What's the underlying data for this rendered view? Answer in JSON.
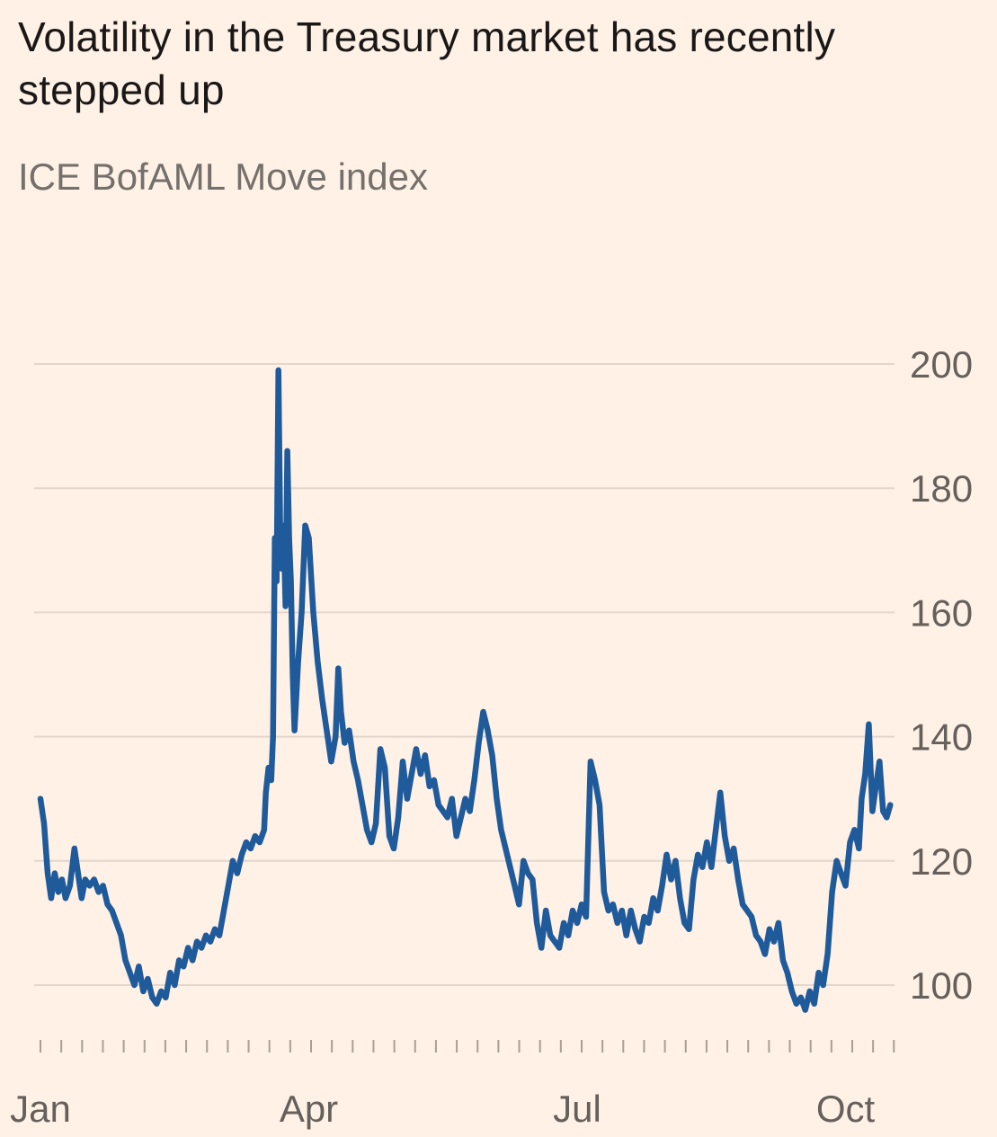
{
  "header": {
    "title": "Volatility in the Treasury market has recently stepped up",
    "subtitle": "ICE BofAML Move index"
  },
  "chart_data": {
    "type": "line",
    "title": "Volatility in the Treasury market has recently stepped up",
    "subtitle": "ICE BofAML Move index",
    "series_name": "ICE BofAML Move index",
    "x_unit": "months (Jan=0, Apr=3, Jul=6, Oct=9)",
    "xlim": [
      0,
      9.55
    ],
    "ylim": [
      90,
      207
    ],
    "grid": "horizontal",
    "legend": "none",
    "yticks": [
      100,
      120,
      140,
      160,
      180,
      200
    ],
    "xticks": [
      {
        "x": 0,
        "label": "Jan"
      },
      {
        "x": 3,
        "label": "Apr"
      },
      {
        "x": 6,
        "label": "Jul"
      },
      {
        "x": 9,
        "label": "Oct"
      }
    ],
    "minor_tick_step": 0.2327,
    "colors": {
      "line": "#1f5a9b",
      "background": "#fff1e5",
      "grid": "#e3d6ca",
      "tick": "#a99f94",
      "axis_text": "#66605c",
      "title_text": "#1a1817",
      "subtitle_text": "#74706b"
    },
    "points": [
      [
        0.0,
        130
      ],
      [
        0.04,
        126
      ],
      [
        0.08,
        118
      ],
      [
        0.12,
        114
      ],
      [
        0.16,
        118
      ],
      [
        0.2,
        115
      ],
      [
        0.24,
        117
      ],
      [
        0.28,
        114
      ],
      [
        0.33,
        116
      ],
      [
        0.38,
        122
      ],
      [
        0.42,
        118
      ],
      [
        0.46,
        114
      ],
      [
        0.5,
        117
      ],
      [
        0.55,
        116
      ],
      [
        0.6,
        117
      ],
      [
        0.65,
        115
      ],
      [
        0.7,
        116
      ],
      [
        0.75,
        113
      ],
      [
        0.8,
        112
      ],
      [
        0.85,
        110
      ],
      [
        0.9,
        108
      ],
      [
        0.95,
        104
      ],
      [
        1.0,
        102
      ],
      [
        1.05,
        100
      ],
      [
        1.1,
        103
      ],
      [
        1.15,
        99
      ],
      [
        1.2,
        101
      ],
      [
        1.25,
        98
      ],
      [
        1.3,
        97
      ],
      [
        1.35,
        99
      ],
      [
        1.4,
        98
      ],
      [
        1.45,
        102
      ],
      [
        1.5,
        100
      ],
      [
        1.55,
        104
      ],
      [
        1.6,
        103
      ],
      [
        1.65,
        106
      ],
      [
        1.7,
        104
      ],
      [
        1.75,
        107
      ],
      [
        1.8,
        106
      ],
      [
        1.85,
        108
      ],
      [
        1.9,
        107
      ],
      [
        1.95,
        109
      ],
      [
        2.0,
        108
      ],
      [
        2.05,
        112
      ],
      [
        2.1,
        116
      ],
      [
        2.15,
        120
      ],
      [
        2.2,
        118
      ],
      [
        2.25,
        121
      ],
      [
        2.3,
        123
      ],
      [
        2.35,
        122
      ],
      [
        2.4,
        124
      ],
      [
        2.45,
        123
      ],
      [
        2.5,
        125
      ],
      [
        2.52,
        131
      ],
      [
        2.55,
        135
      ],
      [
        2.58,
        133
      ],
      [
        2.6,
        140
      ],
      [
        2.62,
        172
      ],
      [
        2.64,
        165
      ],
      [
        2.66,
        199
      ],
      [
        2.68,
        173
      ],
      [
        2.7,
        167
      ],
      [
        2.72,
        174
      ],
      [
        2.74,
        161
      ],
      [
        2.76,
        186
      ],
      [
        2.78,
        172
      ],
      [
        2.8,
        165
      ],
      [
        2.82,
        150
      ],
      [
        2.84,
        141
      ],
      [
        2.88,
        152
      ],
      [
        2.92,
        160
      ],
      [
        2.96,
        174
      ],
      [
        3.0,
        172
      ],
      [
        3.05,
        160
      ],
      [
        3.1,
        152
      ],
      [
        3.15,
        146
      ],
      [
        3.2,
        141
      ],
      [
        3.25,
        136
      ],
      [
        3.3,
        140
      ],
      [
        3.33,
        151
      ],
      [
        3.36,
        144
      ],
      [
        3.4,
        139
      ],
      [
        3.45,
        141
      ],
      [
        3.5,
        136
      ],
      [
        3.55,
        133
      ],
      [
        3.6,
        129
      ],
      [
        3.65,
        125
      ],
      [
        3.7,
        123
      ],
      [
        3.75,
        126
      ],
      [
        3.8,
        138
      ],
      [
        3.85,
        135
      ],
      [
        3.9,
        124
      ],
      [
        3.95,
        122
      ],
      [
        4.0,
        127
      ],
      [
        4.05,
        136
      ],
      [
        4.1,
        130
      ],
      [
        4.15,
        134
      ],
      [
        4.2,
        138
      ],
      [
        4.25,
        134
      ],
      [
        4.3,
        137
      ],
      [
        4.35,
        132
      ],
      [
        4.4,
        133
      ],
      [
        4.45,
        129
      ],
      [
        4.5,
        128
      ],
      [
        4.55,
        127
      ],
      [
        4.6,
        130
      ],
      [
        4.65,
        124
      ],
      [
        4.7,
        127
      ],
      [
        4.75,
        130
      ],
      [
        4.8,
        128
      ],
      [
        4.85,
        133
      ],
      [
        4.9,
        139
      ],
      [
        4.95,
        144
      ],
      [
        5.0,
        141
      ],
      [
        5.05,
        137
      ],
      [
        5.1,
        130
      ],
      [
        5.15,
        125
      ],
      [
        5.2,
        122
      ],
      [
        5.25,
        119
      ],
      [
        5.3,
        116
      ],
      [
        5.35,
        113
      ],
      [
        5.4,
        120
      ],
      [
        5.45,
        118
      ],
      [
        5.5,
        117
      ],
      [
        5.55,
        110
      ],
      [
        5.6,
        106
      ],
      [
        5.65,
        112
      ],
      [
        5.7,
        108
      ],
      [
        5.75,
        107
      ],
      [
        5.8,
        106
      ],
      [
        5.85,
        110
      ],
      [
        5.9,
        108
      ],
      [
        5.95,
        112
      ],
      [
        6.0,
        110
      ],
      [
        6.05,
        113
      ],
      [
        6.1,
        111
      ],
      [
        6.15,
        136
      ],
      [
        6.2,
        133
      ],
      [
        6.25,
        129
      ],
      [
        6.3,
        115
      ],
      [
        6.35,
        112
      ],
      [
        6.4,
        113
      ],
      [
        6.45,
        110
      ],
      [
        6.5,
        112
      ],
      [
        6.55,
        108
      ],
      [
        6.6,
        112
      ],
      [
        6.65,
        109
      ],
      [
        6.7,
        107
      ],
      [
        6.75,
        111
      ],
      [
        6.8,
        110
      ],
      [
        6.85,
        114
      ],
      [
        6.9,
        112
      ],
      [
        6.95,
        116
      ],
      [
        7.0,
        121
      ],
      [
        7.05,
        117
      ],
      [
        7.1,
        120
      ],
      [
        7.15,
        114
      ],
      [
        7.2,
        110
      ],
      [
        7.25,
        109
      ],
      [
        7.3,
        117
      ],
      [
        7.35,
        121
      ],
      [
        7.4,
        119
      ],
      [
        7.45,
        123
      ],
      [
        7.5,
        119
      ],
      [
        7.55,
        125
      ],
      [
        7.6,
        131
      ],
      [
        7.65,
        124
      ],
      [
        7.7,
        120
      ],
      [
        7.75,
        122
      ],
      [
        7.8,
        117
      ],
      [
        7.85,
        113
      ],
      [
        7.9,
        112
      ],
      [
        7.95,
        111
      ],
      [
        8.0,
        108
      ],
      [
        8.05,
        107
      ],
      [
        8.1,
        105
      ],
      [
        8.15,
        109
      ],
      [
        8.2,
        107
      ],
      [
        8.25,
        110
      ],
      [
        8.3,
        104
      ],
      [
        8.35,
        102
      ],
      [
        8.4,
        99
      ],
      [
        8.45,
        97
      ],
      [
        8.5,
        98
      ],
      [
        8.55,
        96
      ],
      [
        8.6,
        99
      ],
      [
        8.65,
        97
      ],
      [
        8.7,
        102
      ],
      [
        8.75,
        100
      ],
      [
        8.8,
        105
      ],
      [
        8.85,
        115
      ],
      [
        8.9,
        120
      ],
      [
        8.95,
        118
      ],
      [
        9.0,
        116
      ],
      [
        9.05,
        123
      ],
      [
        9.1,
        125
      ],
      [
        9.15,
        122
      ],
      [
        9.18,
        130
      ],
      [
        9.22,
        134
      ],
      [
        9.26,
        142
      ],
      [
        9.3,
        128
      ],
      [
        9.34,
        132
      ],
      [
        9.38,
        136
      ],
      [
        9.42,
        128
      ],
      [
        9.46,
        127
      ],
      [
        9.5,
        129
      ]
    ]
  }
}
